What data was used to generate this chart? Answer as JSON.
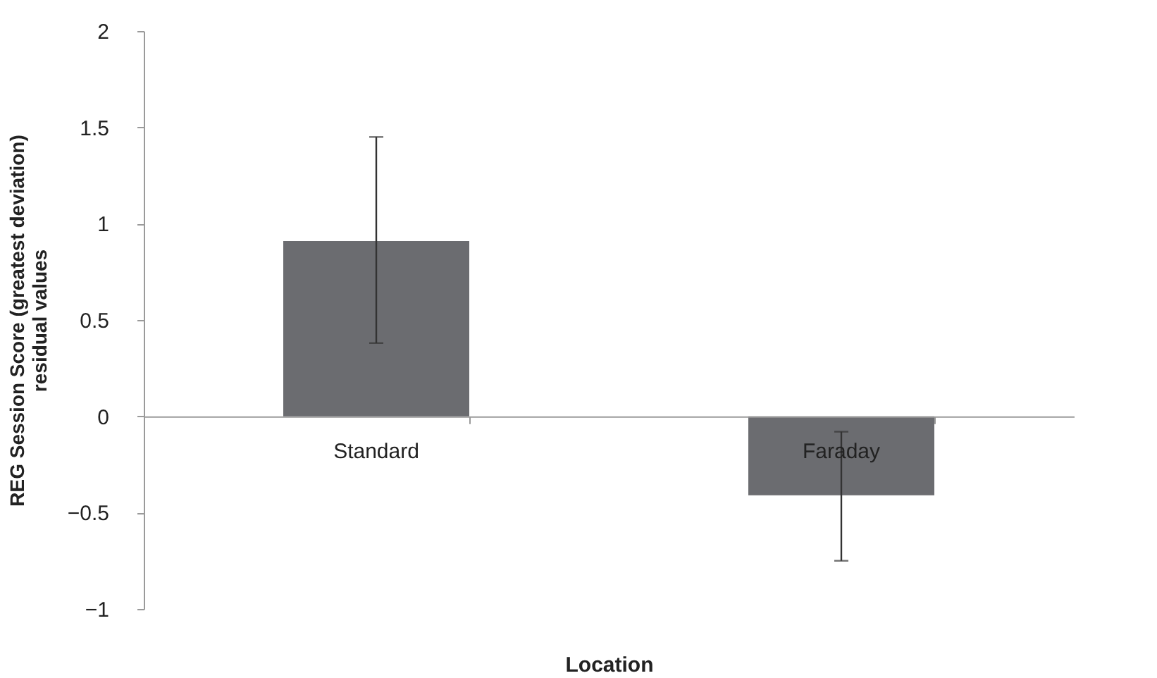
{
  "chart_data": {
    "type": "bar",
    "xlabel": "Location",
    "ylabel": "REG Session Score (greatest deviation)\nresidual values",
    "categories": [
      "Standard",
      "Faraday"
    ],
    "values": [
      0.91,
      -0.41
    ],
    "color": "#6b6c70",
    "errors": [
      [
        0.38,
        1.45
      ],
      [
        -0.75,
        -0.08
      ]
    ],
    "ylim": [
      -1,
      2
    ],
    "yticks": [
      -1,
      -0.5,
      0,
      0.5,
      1,
      1.5,
      2
    ],
    "grid": false
  }
}
